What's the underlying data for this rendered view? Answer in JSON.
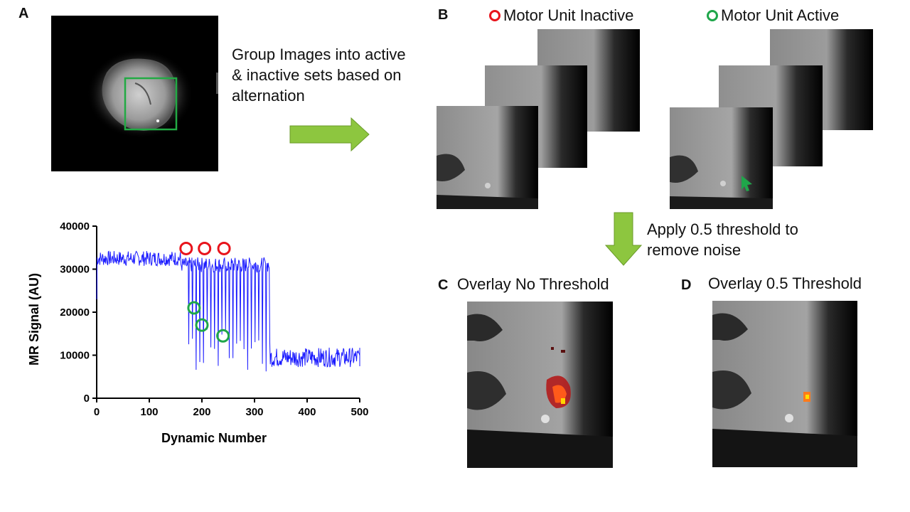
{
  "panels": {
    "a": "A",
    "b": "B",
    "c": "C",
    "d": "D"
  },
  "step_text": {
    "group": "Group Images into active & inactive sets based on alternation",
    "group_lines": [
      "Group Images into active",
      "& inactive sets based on",
      "alternation"
    ],
    "threshold_lines": [
      "Apply 0.5 threshold to",
      "remove noise"
    ]
  },
  "legend": {
    "inactive": "Motor Unit Inactive",
    "active": "Motor Unit Active"
  },
  "overlays": {
    "no_threshold": "Overlay No Threshold",
    "threshold": "Overlay 0.5 Threshold"
  },
  "colors": {
    "roi_box": "#22aa44",
    "inactive_marker": "#e8141c",
    "active_marker": "#1fa64a",
    "arrow": "#8dc63f",
    "signal_line": "#1a1aff"
  },
  "chart_data": {
    "type": "line",
    "xlabel": "Dynamic Number",
    "ylabel": "MR Signal (AU)",
    "xlim": [
      0,
      500
    ],
    "ylim": [
      0,
      40000
    ],
    "xticks": [
      0,
      100,
      200,
      300,
      400,
      500
    ],
    "yticks": [
      0,
      10000,
      20000,
      30000,
      40000
    ],
    "xtick_labels": [
      "0",
      "100",
      "200",
      "300",
      "400",
      "500"
    ],
    "ytick_labels": [
      "0",
      "10000",
      "20000",
      "30000",
      "40000"
    ],
    "series": [
      {
        "segments_mean": [
          {
            "x_range": [
              0,
              160
            ],
            "level": 32500
          },
          {
            "x_range": [
              160,
              330
            ],
            "level": 31000
          },
          {
            "x_range": [
              330,
              505
            ],
            "level": 9500
          }
        ]
      }
    ],
    "markers": {
      "inactive": [
        {
          "x": 170,
          "y": 34800
        },
        {
          "x": 205,
          "y": 34800
        },
        {
          "x": 242,
          "y": 34800
        }
      ],
      "active": [
        {
          "x": 185,
          "y": 21000
        },
        {
          "x": 200,
          "y": 17000
        },
        {
          "x": 240,
          "y": 14500
        }
      ]
    }
  }
}
